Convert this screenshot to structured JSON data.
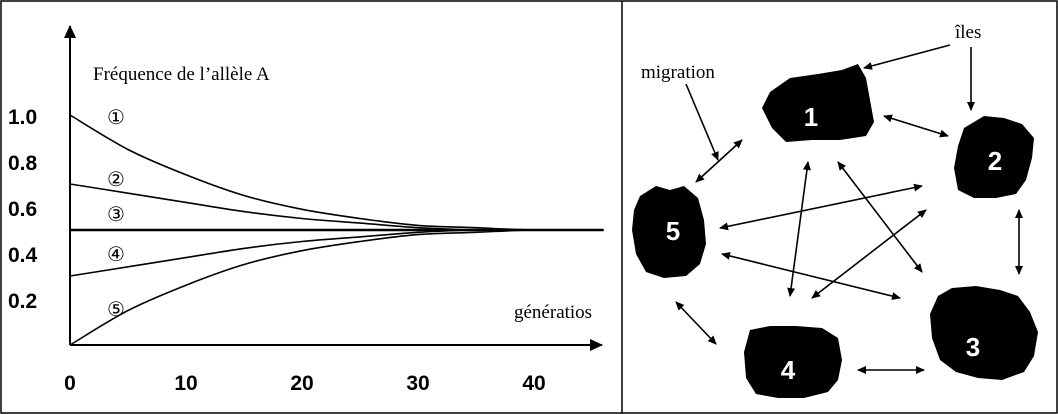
{
  "left_panel": {
    "ylabel": "Fréquence de l’allèle A",
    "xlabel": "génératios",
    "y_ticks": [
      "1.0",
      "0.8",
      "0.6",
      "0.4",
      "0.2"
    ],
    "x_ticks": [
      "0",
      "10",
      "20",
      "30",
      "40"
    ],
    "curve_labels": [
      "①",
      "②",
      "③",
      "④",
      "⑤"
    ]
  },
  "right_panel": {
    "label_migration": "migration",
    "label_iles": "îles",
    "islands": [
      "1",
      "2",
      "3",
      "4",
      "5"
    ]
  },
  "chart_data": {
    "type": "line",
    "xlabel": "génératios",
    "ylabel": "Fréquence de l’allèle A",
    "xlim": [
      0,
      46
    ],
    "ylim": [
      0,
      1.0
    ],
    "series": [
      {
        "name": "①",
        "x": [
          0,
          5,
          10,
          15,
          20,
          25,
          30,
          35,
          40,
          46
        ],
        "y": [
          1.0,
          0.85,
          0.74,
          0.65,
          0.59,
          0.55,
          0.52,
          0.51,
          0.5,
          0.5
        ]
      },
      {
        "name": "②",
        "x": [
          0,
          5,
          10,
          15,
          20,
          25,
          30,
          35,
          40,
          46
        ],
        "y": [
          0.7,
          0.66,
          0.62,
          0.58,
          0.55,
          0.53,
          0.51,
          0.5,
          0.5,
          0.5
        ]
      },
      {
        "name": "③",
        "x": [
          0,
          46
        ],
        "y": [
          0.5,
          0.5
        ]
      },
      {
        "name": "④",
        "x": [
          0,
          5,
          10,
          15,
          20,
          25,
          30,
          35,
          40,
          46
        ],
        "y": [
          0.3,
          0.34,
          0.38,
          0.42,
          0.45,
          0.47,
          0.49,
          0.5,
          0.5,
          0.5
        ]
      },
      {
        "name": "⑤",
        "x": [
          0,
          5,
          10,
          15,
          20,
          25,
          30,
          35,
          40,
          46
        ],
        "y": [
          0.0,
          0.15,
          0.26,
          0.35,
          0.41,
          0.45,
          0.48,
          0.49,
          0.5,
          0.5
        ]
      }
    ]
  }
}
